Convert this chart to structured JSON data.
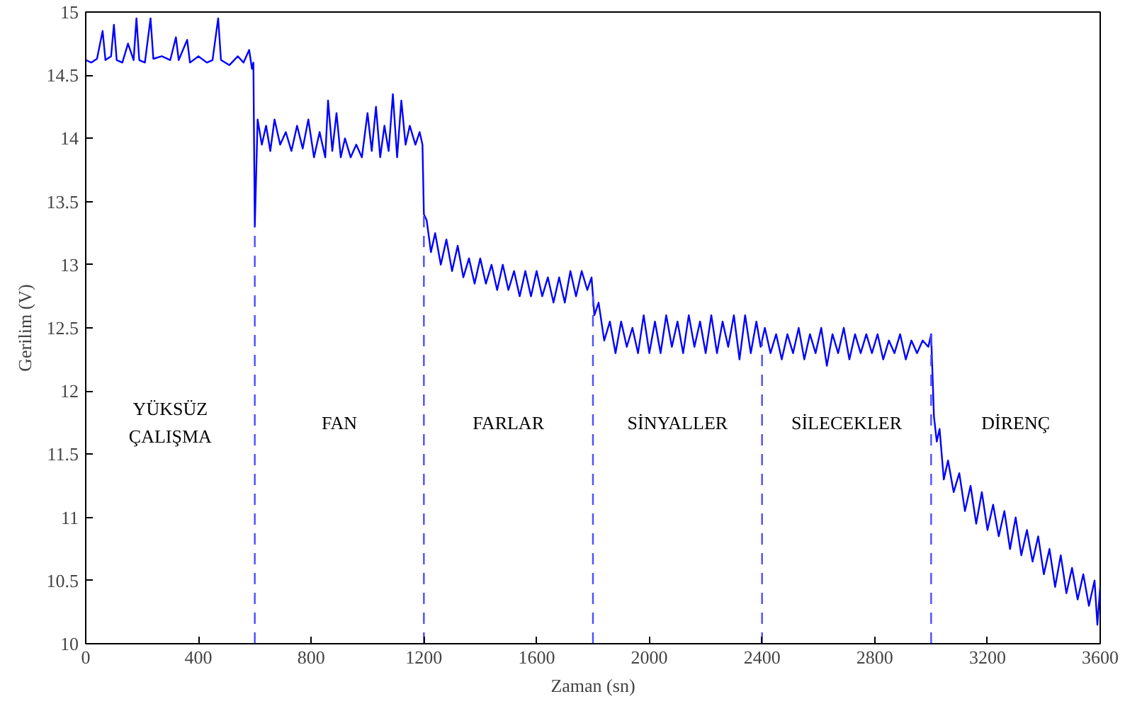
{
  "chart_data": {
    "type": "line",
    "xlabel": "Zaman (sn)",
    "ylabel": "Gerilim (V)",
    "xlim": [
      0,
      3600
    ],
    "ylim": [
      10,
      15
    ],
    "xticks": [
      0,
      400,
      800,
      1200,
      1600,
      2000,
      2400,
      2800,
      3200,
      3600
    ],
    "yticks": [
      10,
      10.5,
      11,
      11.5,
      12,
      12.5,
      13,
      13.5,
      14,
      14.5,
      15
    ],
    "grid": false,
    "marker": "none",
    "line_style": "solid",
    "series": [
      {
        "color": "#0000ff",
        "x": [
          0,
          20,
          40,
          60,
          70,
          90,
          100,
          110,
          130,
          150,
          170,
          180,
          190,
          210,
          230,
          240,
          270,
          300,
          320,
          330,
          360,
          370,
          400,
          430,
          450,
          470,
          480,
          510,
          540,
          560,
          580,
          590,
          595,
          600,
          610,
          625,
          640,
          655,
          670,
          690,
          710,
          730,
          750,
          770,
          790,
          810,
          830,
          850,
          860,
          875,
          890,
          905,
          920,
          940,
          960,
          980,
          1000,
          1015,
          1030,
          1045,
          1060,
          1075,
          1090,
          1105,
          1120,
          1135,
          1150,
          1170,
          1185,
          1195,
          1200,
          1210,
          1225,
          1240,
          1260,
          1280,
          1300,
          1320,
          1340,
          1360,
          1380,
          1400,
          1420,
          1440,
          1460,
          1480,
          1500,
          1520,
          1540,
          1560,
          1580,
          1600,
          1620,
          1640,
          1660,
          1680,
          1700,
          1720,
          1740,
          1760,
          1780,
          1795,
          1805,
          1820,
          1840,
          1860,
          1880,
          1900,
          1920,
          1940,
          1960,
          1980,
          2000,
          2020,
          2040,
          2060,
          2080,
          2100,
          2120,
          2140,
          2160,
          2180,
          2200,
          2220,
          2240,
          2260,
          2280,
          2300,
          2320,
          2340,
          2360,
          2380,
          2395,
          2410,
          2430,
          2450,
          2470,
          2490,
          2510,
          2530,
          2550,
          2570,
          2590,
          2610,
          2630,
          2650,
          2670,
          2690,
          2710,
          2730,
          2750,
          2770,
          2790,
          2810,
          2830,
          2850,
          2870,
          2890,
          2910,
          2930,
          2950,
          2970,
          2990,
          3000,
          3010,
          3020,
          3030,
          3045,
          3060,
          3080,
          3100,
          3120,
          3140,
          3160,
          3180,
          3200,
          3220,
          3240,
          3260,
          3280,
          3300,
          3320,
          3340,
          3360,
          3380,
          3400,
          3420,
          3440,
          3460,
          3480,
          3500,
          3520,
          3540,
          3560,
          3580,
          3590,
          3600
        ],
        "values": [
          14.62,
          14.6,
          14.63,
          14.85,
          14.62,
          14.65,
          14.9,
          14.62,
          14.6,
          14.75,
          14.62,
          14.95,
          14.62,
          14.6,
          14.95,
          14.63,
          14.65,
          14.62,
          14.8,
          14.62,
          14.78,
          14.6,
          14.65,
          14.6,
          14.62,
          14.95,
          14.62,
          14.58,
          14.65,
          14.6,
          14.7,
          14.55,
          14.6,
          13.3,
          14.15,
          13.95,
          14.1,
          13.9,
          14.15,
          13.95,
          14.05,
          13.9,
          14.1,
          13.92,
          14.15,
          13.85,
          14.05,
          13.85,
          14.3,
          13.9,
          14.2,
          13.85,
          14.0,
          13.85,
          13.95,
          13.85,
          14.2,
          13.9,
          14.25,
          13.85,
          14.1,
          13.9,
          14.35,
          13.85,
          14.3,
          13.95,
          14.1,
          13.95,
          14.05,
          13.95,
          13.4,
          13.35,
          13.1,
          13.25,
          13.0,
          13.2,
          12.95,
          13.15,
          12.9,
          13.05,
          12.85,
          13.05,
          12.85,
          13.0,
          12.8,
          13.0,
          12.8,
          12.95,
          12.75,
          12.95,
          12.75,
          12.95,
          12.75,
          12.9,
          12.7,
          12.9,
          12.7,
          12.95,
          12.75,
          12.95,
          12.8,
          12.9,
          12.6,
          12.7,
          12.4,
          12.55,
          12.3,
          12.55,
          12.35,
          12.5,
          12.3,
          12.6,
          12.3,
          12.55,
          12.3,
          12.6,
          12.35,
          12.55,
          12.3,
          12.6,
          12.35,
          12.55,
          12.3,
          12.6,
          12.3,
          12.55,
          12.35,
          12.6,
          12.25,
          12.6,
          12.3,
          12.55,
          12.35,
          12.5,
          12.3,
          12.45,
          12.25,
          12.45,
          12.3,
          12.5,
          12.25,
          12.45,
          12.3,
          12.5,
          12.2,
          12.45,
          12.3,
          12.5,
          12.25,
          12.45,
          12.3,
          12.45,
          12.3,
          12.45,
          12.25,
          12.4,
          12.3,
          12.45,
          12.25,
          12.4,
          12.3,
          12.4,
          12.35,
          12.45,
          11.8,
          11.6,
          11.7,
          11.3,
          11.45,
          11.2,
          11.35,
          11.05,
          11.25,
          10.95,
          11.2,
          10.9,
          11.1,
          10.85,
          11.05,
          10.75,
          11.0,
          10.7,
          10.9,
          10.65,
          10.85,
          10.55,
          10.75,
          10.45,
          10.7,
          10.4,
          10.6,
          10.35,
          10.55,
          10.3,
          10.5,
          10.15,
          10.45
        ]
      }
    ],
    "ref_lines": [
      {
        "axis": "x",
        "value": 600,
        "color": "#4d4dff",
        "line_style": "dashed"
      },
      {
        "axis": "x",
        "value": 1200,
        "color": "#4d4dff",
        "line_style": "dashed"
      },
      {
        "axis": "x",
        "value": 1800,
        "color": "#4d4dff",
        "line_style": "dashed"
      },
      {
        "axis": "x",
        "value": 2400,
        "color": "#4d4dff",
        "line_style": "dashed"
      },
      {
        "axis": "x",
        "value": 3000,
        "color": "#4d4dff",
        "line_style": "dashed"
      }
    ],
    "annotations": [
      "YÜKSÜZ\nÇALIŞMA",
      "FAN",
      "FARLAR",
      "SİNYALLER",
      "SİLECEKLER",
      "DİRENÇ"
    ]
  }
}
